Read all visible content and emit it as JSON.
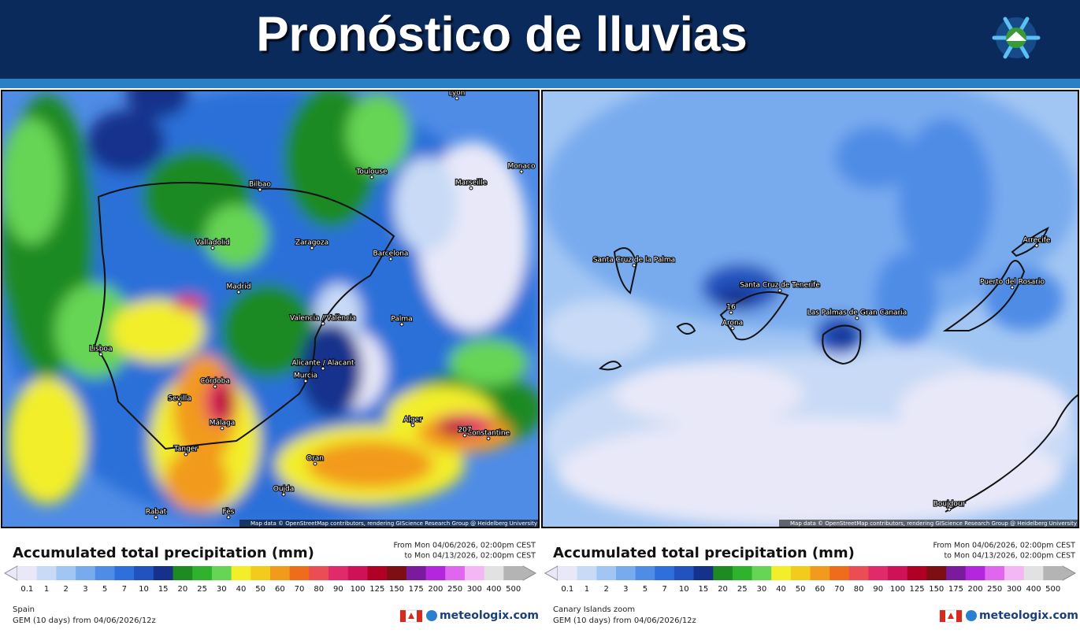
{
  "header": {
    "title": "Pronóstico de lluvias"
  },
  "legend_colors": [
    "#e8e8f8",
    "#c8daf6",
    "#a2c6f3",
    "#78aaee",
    "#4f8ce6",
    "#2f6fdb",
    "#2152be",
    "#15318c",
    "#1d8a22",
    "#2fb32f",
    "#66d455",
    "#f2ee2a",
    "#f2cb1d",
    "#f29a1c",
    "#ef6c1c",
    "#ea4d53",
    "#e02a6a",
    "#cf1158",
    "#b00024",
    "#7d0f14",
    "#7a1a9c",
    "#b426de",
    "#e066f0",
    "#f4b6f4",
    "#e2e2e2",
    "#b4b4b4"
  ],
  "panels": [
    {
      "legend_title": "Accumulated total precipitation (mm)",
      "from": "From Mon 04/06/2026, 02:00pm CEST",
      "to": "to Mon 04/13/2026, 02:00pm CEST",
      "ticks": [
        0.1,
        1,
        2,
        3,
        5,
        7,
        10,
        15,
        20,
        25,
        30,
        40,
        50,
        60,
        70,
        80,
        90,
        100,
        125,
        150,
        175,
        200,
        250,
        300,
        400,
        500
      ],
      "region": "Spain",
      "model": "GEM (10 days) from 04/06/2026/12z",
      "brand": "meteologix.com",
      "credit": "Map data © OpenStreetMap contributors, rendering GIScience Research Group @ Heidelberg University",
      "map_labels": [
        "Lyon",
        "Toulouse",
        "Marseille",
        "Monaco",
        "Bilbao",
        "Valladolid",
        "Zaragoza",
        "Barcelona",
        "Madrid",
        "Valencia / València",
        "Palma",
        "Lisboa",
        "Alicante / Alacant",
        "Murcia",
        "Córdoba",
        "Sevilla",
        "Málaga",
        "Tanger",
        "Oran",
        "Alger",
        "Constantine",
        "Rabat",
        "Oujda",
        "Fès",
        "207"
      ]
    },
    {
      "legend_title": "Accumulated total precipitation (mm)",
      "from": "From Mon 04/06/2026, 02:00pm CEST",
      "to": "to Mon 04/13/2026, 02:00pm CEST",
      "ticks": [
        0.1,
        1,
        2,
        3,
        5,
        7,
        10,
        15,
        20,
        25,
        30,
        40,
        50,
        60,
        70,
        80,
        90,
        100,
        125,
        150,
        175,
        200,
        250,
        300,
        400,
        500
      ],
      "region": "Canary Islands zoom",
      "model": "GEM (10 days) from 04/06/2026/12z",
      "brand": "meteologix.com",
      "credit": "Map data © OpenStreetMap contributors, rendering GIScience Research Group @ Heidelberg University",
      "map_labels": [
        "Santa Cruz de la Palma",
        "Santa Cruz de Tenerife",
        "Las Palmas de Gran Canaria",
        "Puerto del Rosario",
        "Arrecife",
        "Arona",
        "16",
        "Boujdour"
      ]
    }
  ]
}
